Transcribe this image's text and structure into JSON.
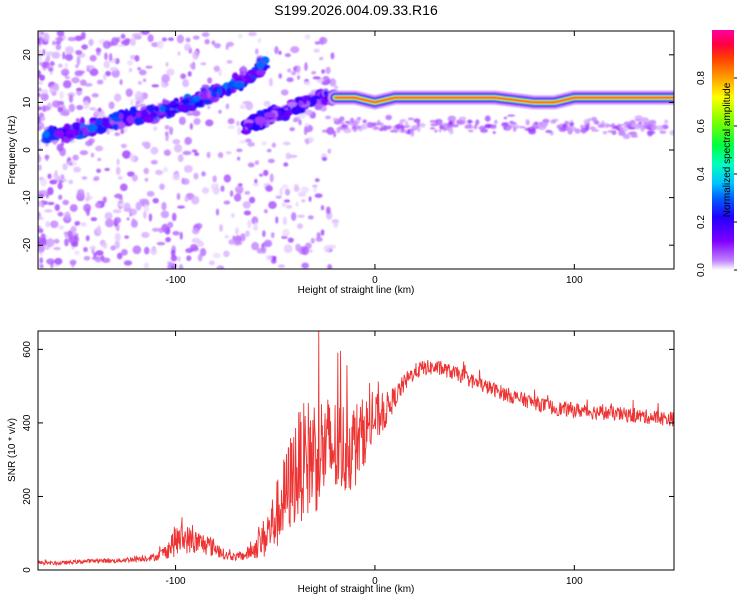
{
  "figure": {
    "title": "S199.2026.004.09.33.R16"
  },
  "chart_data": [
    {
      "type": "heatmap",
      "title": "",
      "xlabel": "Height of straight line (km)",
      "ylabel": "Frequency (Hz)",
      "xlim": [
        -169,
        150
      ],
      "ylim": [
        -25,
        25
      ],
      "xticks": [
        -100,
        0,
        100
      ],
      "yticks": [
        -20,
        -10,
        0,
        10,
        20
      ],
      "grid": false,
      "colorbar": {
        "label": "Normalized spectral amplitude",
        "range": [
          0.0,
          1.0
        ],
        "ticks": [
          0.0,
          0.2,
          0.4,
          0.6,
          0.8
        ],
        "tick_labels": [
          "0.0",
          "0.2",
          "0.4",
          "0.6",
          "0.8"
        ],
        "colormap": [
          "#ffffff",
          "#c080ff",
          "#8000ff",
          "#2000ff",
          "#0060ff",
          "#00c0ff",
          "#00ffc0",
          "#00ff40",
          "#80ff00",
          "#ffff00",
          "#ffa000",
          "#ff4000",
          "#ff0040",
          "#ff00a0"
        ]
      },
      "traces": [
        {
          "x": [
            -165,
            -150,
            -140,
            -130,
            -120,
            -110,
            -100,
            -90,
            -80,
            -70,
            -60,
            -55
          ],
          "y": [
            3,
            4,
            5,
            6,
            7,
            8,
            9,
            10,
            12,
            14,
            16,
            18
          ],
          "amplitude": 0.25
        },
        {
          "x": [
            -65,
            -60,
            -55,
            -50,
            -45,
            -40,
            -35,
            -30,
            -25,
            -20
          ],
          "y": [
            5,
            6,
            7,
            7.5,
            8,
            9,
            10,
            10.5,
            11,
            11
          ],
          "amplitude": 0.2
        },
        {
          "x": [
            -20,
            -10,
            0,
            10,
            20,
            40,
            60,
            80,
            90,
            100,
            120,
            150
          ],
          "y": [
            11,
            11,
            10,
            11,
            11,
            11,
            11,
            10,
            10,
            11,
            11,
            11
          ],
          "amplitude": 0.9
        }
      ]
    },
    {
      "type": "line",
      "title": "",
      "xlabel": "Height of straight line (km)",
      "ylabel": "SNR (10 * v/v)",
      "xlim": [
        -169,
        150
      ],
      "ylim": [
        0,
        650
      ],
      "xticks": [
        -100,
        0,
        100
      ],
      "yticks": [
        0,
        200,
        400,
        600
      ],
      "grid": false,
      "series": [
        {
          "color": "#ee3333",
          "x": [
            -169,
            -160,
            -150,
            -140,
            -130,
            -120,
            -110,
            -105,
            -100,
            -95,
            -90,
            -85,
            -80,
            -75,
            -70,
            -65,
            -60,
            -55,
            -50,
            -45,
            -40,
            -35,
            -30,
            -25,
            -20,
            -15,
            -10,
            -5,
            0,
            5,
            10,
            15,
            20,
            25,
            30,
            35,
            40,
            45,
            50,
            55,
            60,
            70,
            80,
            90,
            100,
            110,
            120,
            130,
            140,
            150
          ],
          "y": [
            20,
            18,
            22,
            25,
            25,
            30,
            35,
            50,
            80,
            85,
            75,
            70,
            60,
            40,
            35,
            40,
            60,
            90,
            140,
            200,
            270,
            300,
            320,
            330,
            330,
            330,
            340,
            380,
            410,
            430,
            470,
            510,
            540,
            550,
            550,
            545,
            535,
            525,
            510,
            500,
            490,
            470,
            455,
            440,
            435,
            430,
            425,
            420,
            415,
            410
          ],
          "noise": [
            5,
            5,
            5,
            6,
            6,
            8,
            10,
            20,
            45,
            40,
            35,
            30,
            25,
            12,
            10,
            15,
            30,
            60,
            90,
            120,
            150,
            160,
            170,
            150,
            140,
            130,
            120,
            90,
            70,
            50,
            30,
            25,
            22,
            22,
            20,
            20,
            20,
            20,
            20,
            20,
            20,
            20,
            20,
            20,
            20,
            20,
            20,
            20,
            20,
            20
          ]
        }
      ]
    }
  ]
}
